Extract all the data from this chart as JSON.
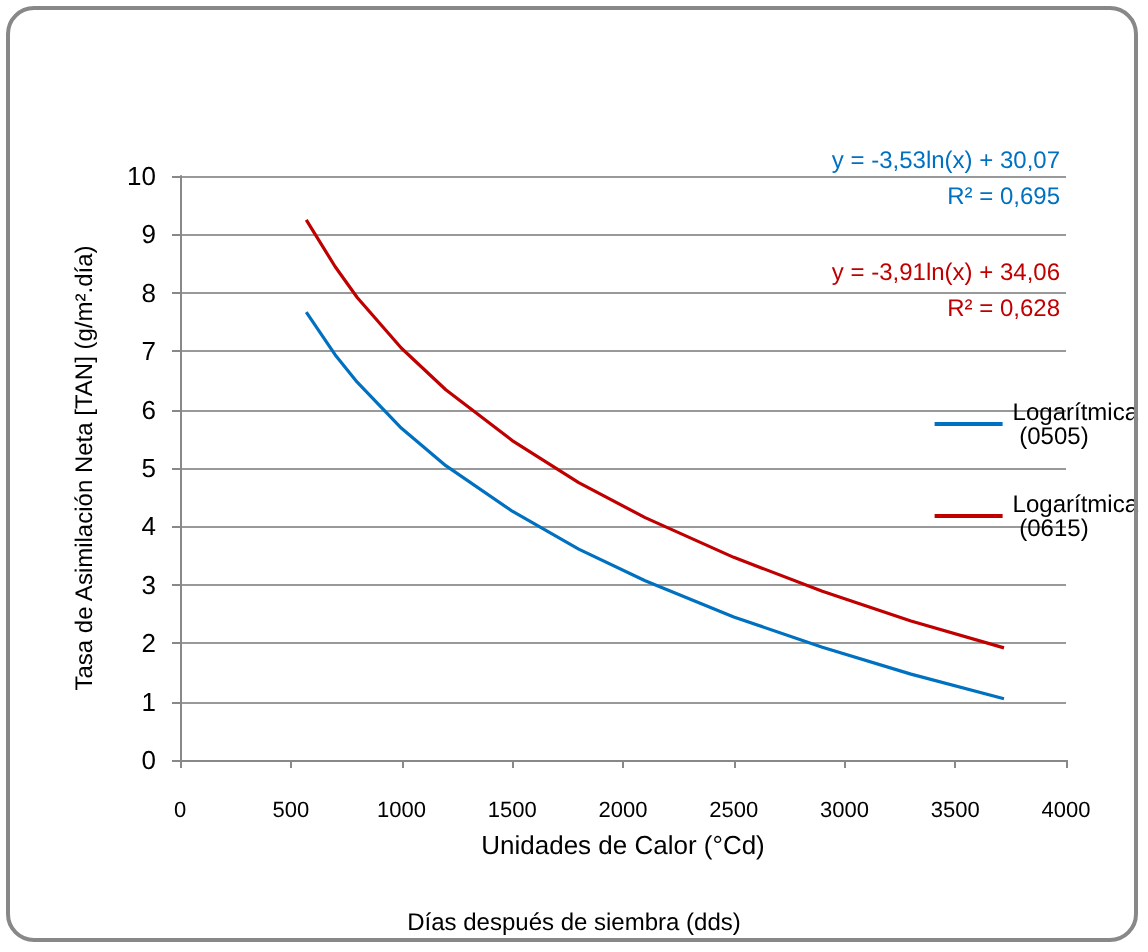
{
  "chart_data": {
    "type": "line",
    "xlabel": "Unidades de Calor (°Cd)",
    "ylabel": "Tasa de Asimilación Neta [TAN] (g/m².día)",
    "x": [
      570,
      700,
      800,
      1000,
      1200,
      1500,
      1800,
      2100,
      2500,
      2900,
      3300,
      3720
    ],
    "series": [
      {
        "name": "Logarítmica (0505)",
        "color": "#0070c0",
        "values": [
          7.67,
          6.94,
          6.47,
          5.68,
          5.04,
          4.26,
          3.61,
          3.07,
          2.45,
          1.93,
          1.47,
          1.05
        ]
      },
      {
        "name": "Logarítmica (0615)",
        "color": "#c00000",
        "values": [
          9.25,
          8.45,
          7.92,
          7.05,
          6.34,
          5.47,
          4.75,
          4.15,
          3.47,
          2.89,
          2.38,
          1.92
        ]
      }
    ],
    "xlim": [
      0,
      4000
    ],
    "xticks": [
      0,
      500,
      1000,
      1500,
      2000,
      2500,
      3000,
      3500,
      4000
    ],
    "ylim": [
      0,
      10
    ],
    "yticks": [
      0,
      1,
      2,
      3,
      4,
      5,
      6,
      7,
      8,
      9,
      10
    ],
    "grid": "y",
    "legend": "right",
    "marker": "none",
    "line_style": "solid",
    "annotations": [
      "y = -3,53ln(x) + 30,07",
      "R² = 0,695",
      "y = -3,91ln(x) + 34,06",
      "R² = 0,628",
      "Días después de siembra (dds)"
    ]
  }
}
